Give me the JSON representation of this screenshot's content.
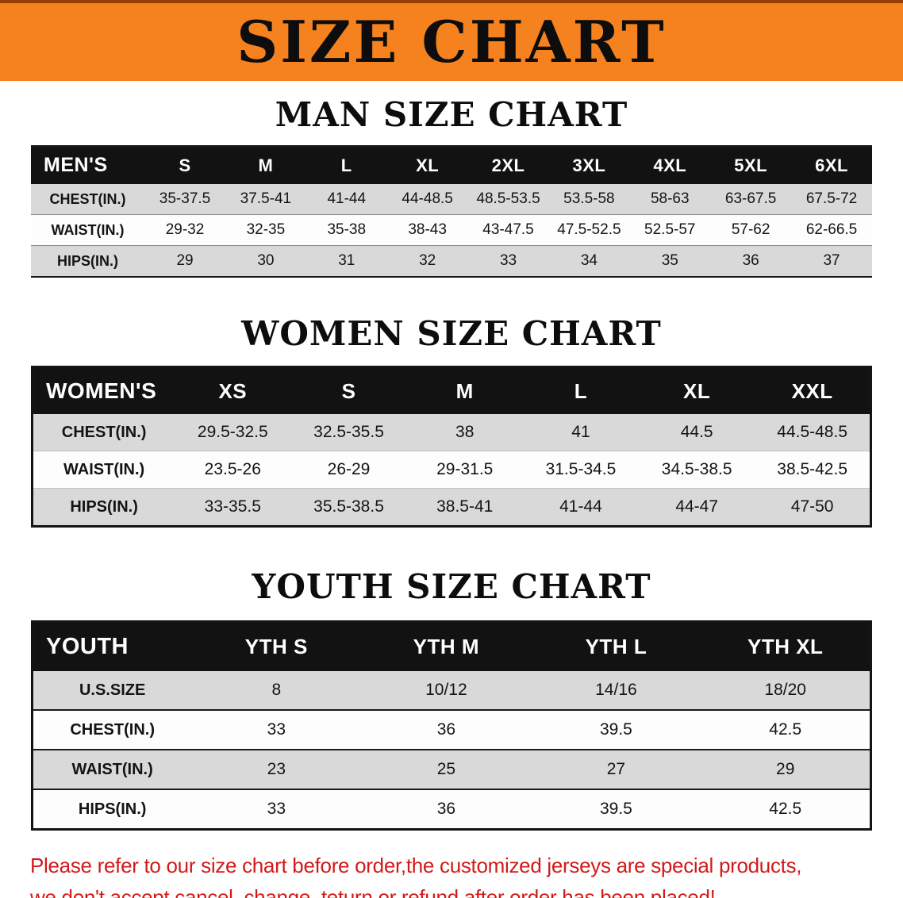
{
  "banner": {
    "title": "SIZE CHART",
    "background_color": "#f5821f",
    "text_color": "#0d0d0d"
  },
  "sections": [
    {
      "heading": "MAN SIZE CHART",
      "table": {
        "header": [
          "MEN'S",
          "S",
          "M",
          "L",
          "XL",
          "2XL",
          "3XL",
          "4XL",
          "5XL",
          "6XL"
        ],
        "rows": [
          [
            "CHEST(IN.)",
            "35-37.5",
            "37.5-41",
            "41-44",
            "44-48.5",
            "48.5-53.5",
            "53.5-58",
            "58-63",
            "63-67.5",
            "67.5-72"
          ],
          [
            "WAIST(IN.)",
            "29-32",
            "32-35",
            "35-38",
            "38-43",
            "43-47.5",
            "47.5-52.5",
            "52.5-57",
            "57-62",
            "62-66.5"
          ],
          [
            "HIPS(IN.)",
            "29",
            "30",
            "31",
            "32",
            "33",
            "34",
            "35",
            "36",
            "37"
          ]
        ]
      }
    },
    {
      "heading": "WOMEN SIZE CHART",
      "table": {
        "header": [
          "WOMEN'S",
          "XS",
          "S",
          "M",
          "L",
          "XL",
          "XXL"
        ],
        "rows": [
          [
            "CHEST(IN.)",
            "29.5-32.5",
            "32.5-35.5",
            "38",
            "41",
            "44.5",
            "44.5-48.5"
          ],
          [
            "WAIST(IN.)",
            "23.5-26",
            "26-29",
            "29-31.5",
            "31.5-34.5",
            "34.5-38.5",
            "38.5-42.5"
          ],
          [
            "HIPS(IN.)",
            "33-35.5",
            "35.5-38.5",
            "38.5-41",
            "41-44",
            "44-47",
            "47-50"
          ]
        ]
      }
    },
    {
      "heading": "YOUTH SIZE CHART",
      "table": {
        "header": [
          "YOUTH",
          "YTH S",
          "YTH M",
          "YTH L",
          "YTH XL"
        ],
        "rows": [
          [
            "U.S.SIZE",
            "8",
            "10/12",
            "14/16",
            "18/20"
          ],
          [
            "CHEST(IN.)",
            "33",
            "36",
            "39.5",
            "42.5"
          ],
          [
            "WAIST(IN.)",
            "23",
            "25",
            "27",
            "29"
          ],
          [
            "HIPS(IN.)",
            "33",
            "36",
            "39.5",
            "42.5"
          ]
        ]
      }
    }
  ],
  "disclaimer": {
    "line1": "Please refer to our size chart before order,the customized jerseys are special products,",
    "line2": "we don't accept cancel, change, teturn or refund after order has been placed!",
    "color": "#d21a1a"
  }
}
